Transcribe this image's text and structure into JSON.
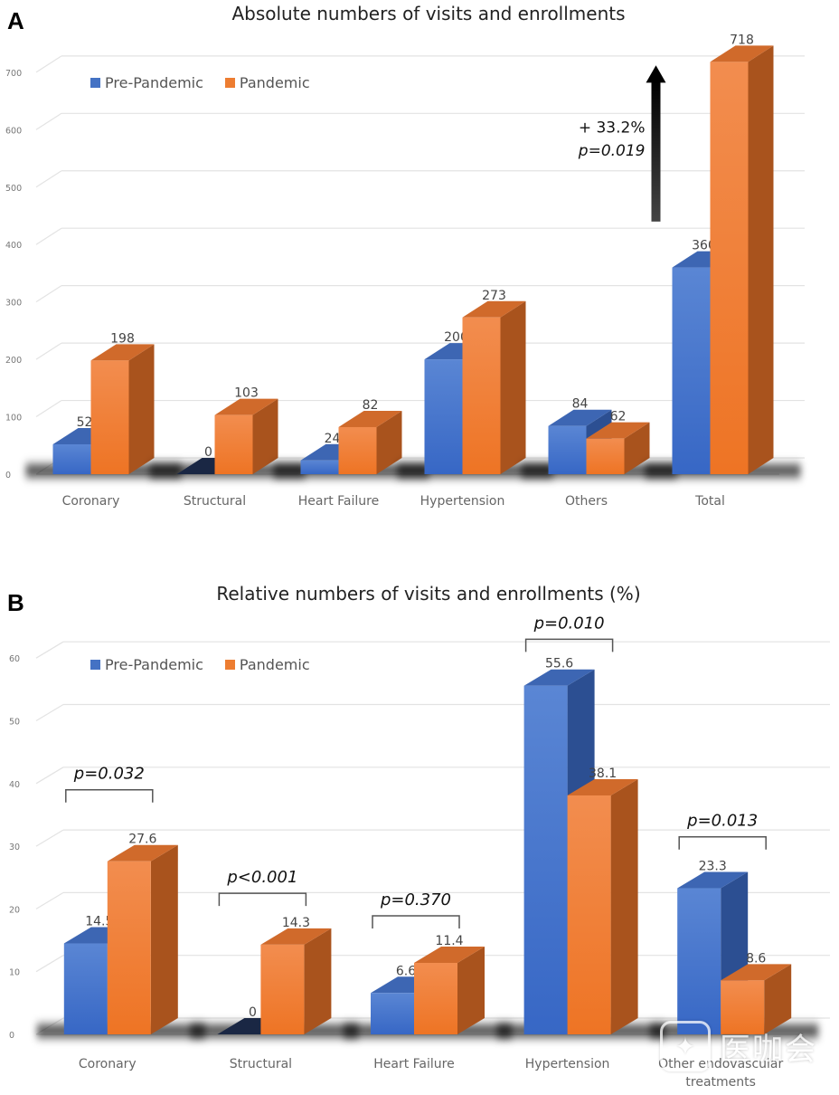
{
  "figure": {
    "panel_a_letter": "A",
    "panel_b_letter": "B",
    "legend": {
      "pre": "Pre-Pandemic",
      "pan": "Pandemic"
    },
    "colors": {
      "pre": "#4472C4",
      "pan": "#ED7D31",
      "arrow": "#000000"
    },
    "watermark": {
      "icon": "chat-bubble-icon",
      "text": "医咖会"
    }
  },
  "chart_data": [
    {
      "type": "bar",
      "title": "Absolute numbers of visits and enrollments",
      "xlabel": "",
      "ylabel": "",
      "ylim": [
        0,
        700
      ],
      "yticks": [
        0,
        100,
        200,
        300,
        400,
        500,
        600,
        700
      ],
      "grid": true,
      "legend_position": "top-left",
      "categories": [
        "Coronary",
        "Structural",
        "Heart Failure",
        "Hypertension",
        "Others",
        "Total"
      ],
      "series": [
        {
          "name": "Pre-Pandemic",
          "values": [
            52,
            0,
            24,
            200,
            84,
            360
          ]
        },
        {
          "name": "Pandemic",
          "values": [
            198,
            103,
            82,
            273,
            62,
            718
          ]
        }
      ],
      "data_labels": [
        [
          "52",
          "0",
          "24",
          "200",
          "84",
          "360"
        ],
        [
          "198",
          "103",
          "82",
          "273",
          "62",
          "718"
        ]
      ],
      "annotations": [
        {
          "category": "Total",
          "type": "arrow-up",
          "text_line1": "+ 33.2%",
          "text_line2": "p=0.019"
        }
      ]
    },
    {
      "type": "bar",
      "title": "Relative numbers of visits and enrollments (%)",
      "xlabel": "",
      "ylabel": "",
      "ylim": [
        0,
        60
      ],
      "yticks": [
        0,
        10,
        20,
        30,
        40,
        50,
        60
      ],
      "grid": true,
      "legend_position": "top-left",
      "categories": [
        "Coronary",
        "Structural",
        "Heart Failure",
        "Hypertension",
        "Other endovascular treatments"
      ],
      "category_label_lines": [
        [
          "Coronary"
        ],
        [
          "Structural"
        ],
        [
          "Heart Failure"
        ],
        [
          "Hypertension"
        ],
        [
          "Other endovascular",
          "treatments"
        ]
      ],
      "series": [
        {
          "name": "Pre-Pandemic",
          "values": [
            14.5,
            0,
            6.6,
            55.6,
            23.3
          ]
        },
        {
          "name": "Pandemic",
          "values": [
            27.6,
            14.3,
            11.4,
            38.1,
            8.6
          ]
        }
      ],
      "data_labels": [
        [
          "14.5",
          "0",
          "6.6",
          "55.6",
          "23.3"
        ],
        [
          "27.6",
          "14.3",
          "11.4",
          "38.1",
          "8.6"
        ]
      ],
      "annotations": [
        {
          "category": "Coronary",
          "type": "bracket",
          "text": "p=0.032",
          "level": 39
        },
        {
          "category": "Structural",
          "type": "bracket",
          "text": "p<0.001",
          "level": 22.5
        },
        {
          "category": "Heart Failure",
          "type": "bracket",
          "text": "p=0.370",
          "level": 18.9
        },
        {
          "category": "Hypertension",
          "type": "bracket",
          "text": "p=0.010",
          "level": 63
        },
        {
          "category": "Other endovascular treatments",
          "type": "bracket",
          "text": "p=0.013",
          "level": 31.5
        }
      ]
    }
  ]
}
